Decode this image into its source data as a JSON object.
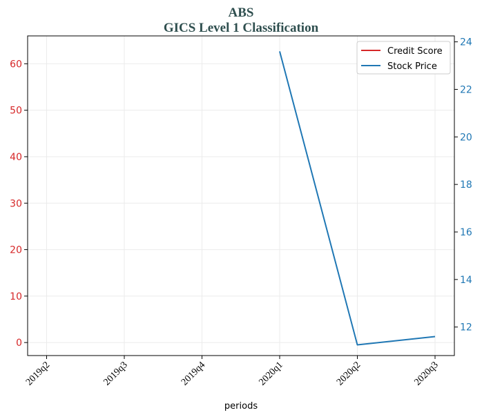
{
  "chart_data": {
    "type": "line",
    "title": "ABS",
    "subtitle": "GICS Level 1 Classification",
    "xlabel": "periods",
    "categories": [
      "2019q2",
      "2019q3",
      "2019q4",
      "2020q1",
      "2020q2",
      "2020q3"
    ],
    "y_left": {
      "ticks": [
        0,
        10,
        20,
        30,
        40,
        50,
        60
      ],
      "ylim": [
        -2.8,
        66
      ],
      "color": "#d62728"
    },
    "y_right": {
      "ticks": [
        12,
        14,
        16,
        18,
        20,
        22,
        24
      ],
      "ylim": [
        10.8,
        24.25
      ],
      "color": "#1f77b4"
    },
    "grid": true,
    "legend_position": "top-right",
    "series": [
      {
        "name": "Credit Score",
        "axis": "left",
        "color": "#d62728",
        "values": [
          null,
          null,
          null,
          null,
          null,
          null
        ]
      },
      {
        "name": "Stock Price",
        "axis": "right",
        "color": "#1f77b4",
        "values": [
          null,
          null,
          null,
          23.6,
          11.25,
          11.6
        ]
      }
    ]
  }
}
